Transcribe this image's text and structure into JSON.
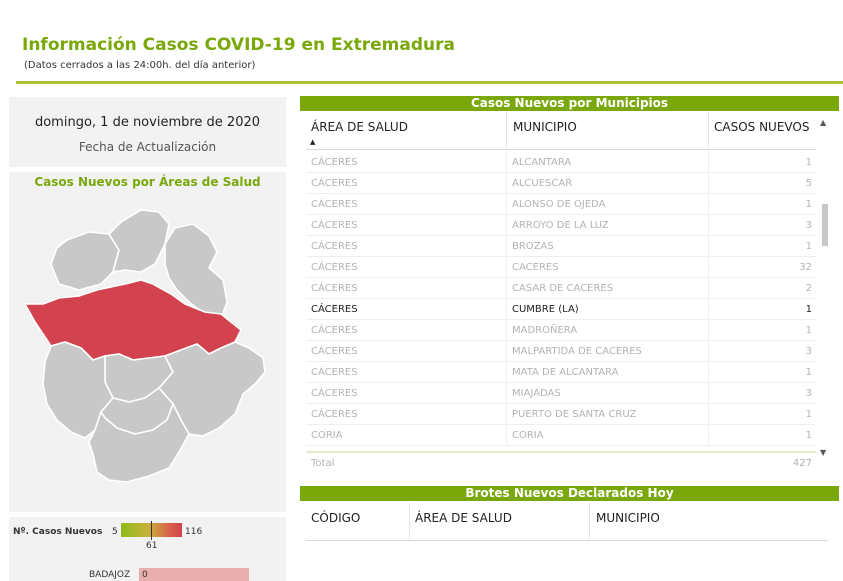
{
  "header": {
    "title": "Información Casos COVID-19 en Extremadura",
    "subtitle": "(Datos cerrados a las 24:00h. del día anterior)"
  },
  "update": {
    "date": "domingo, 1 de noviembre de 2020",
    "caption": "Fecha de Actualización"
  },
  "map": {
    "title": "Casos Nuevos por Áreas de Salud",
    "highlight_color": "#d3434f",
    "base_color": "#c8c8c8"
  },
  "legend": {
    "label": "Nº. Casos Nuevos",
    "min": "5",
    "mid": "61",
    "max": "116",
    "bar_label": "BADAJOZ",
    "bar_value": "0"
  },
  "cases_table": {
    "title": "Casos Nuevos por Municipios",
    "columns": [
      "ÁREA DE SALUD",
      "MUNICIPIO",
      "CASOS NUEVOS"
    ],
    "sort_indicator": "▲",
    "rows": [
      {
        "area": "CÁCERES",
        "municipio": "ALCANTARA",
        "casos": "1"
      },
      {
        "area": "CÁCERES",
        "municipio": "ALCUESCAR",
        "casos": "5"
      },
      {
        "area": "CÁCERES",
        "municipio": "ALONSO DE OJEDA",
        "casos": "1"
      },
      {
        "area": "CÁCERES",
        "municipio": "ARROYO DE LA LUZ",
        "casos": "3"
      },
      {
        "area": "CÁCERES",
        "municipio": "BROZAS",
        "casos": "1"
      },
      {
        "area": "CÁCERES",
        "municipio": "CACERES",
        "casos": "32"
      },
      {
        "area": "CÁCERES",
        "municipio": "CASAR DE CACERES",
        "casos": "2"
      },
      {
        "area": "CÁCERES",
        "municipio": "CUMBRE (LA)",
        "casos": "1"
      },
      {
        "area": "CÁCERES",
        "municipio": "MADROÑERA",
        "casos": "1"
      },
      {
        "area": "CÁCERES",
        "municipio": "MALPARTIDA DE CACERES",
        "casos": "3"
      },
      {
        "area": "CÁCERES",
        "municipio": "MATA DE ALCANTARA",
        "casos": "1"
      },
      {
        "area": "CÁCERES",
        "municipio": "MIAJADAS",
        "casos": "3"
      },
      {
        "area": "CÁCERES",
        "municipio": "PUERTO DE SANTA CRUZ",
        "casos": "1"
      },
      {
        "area": "CORIA",
        "municipio": "CORIA",
        "casos": "1"
      }
    ],
    "highlight_row": 7,
    "total_label": "Total",
    "total_value": "427"
  },
  "outbreaks_table": {
    "title": "Brotes Nuevos Declarados Hoy",
    "columns": [
      "CÓDIGO",
      "ÁREA DE SALUD",
      "MUNICIPIO"
    ]
  },
  "icons": {
    "scroll_up": "▲",
    "scroll_down": "▼"
  }
}
